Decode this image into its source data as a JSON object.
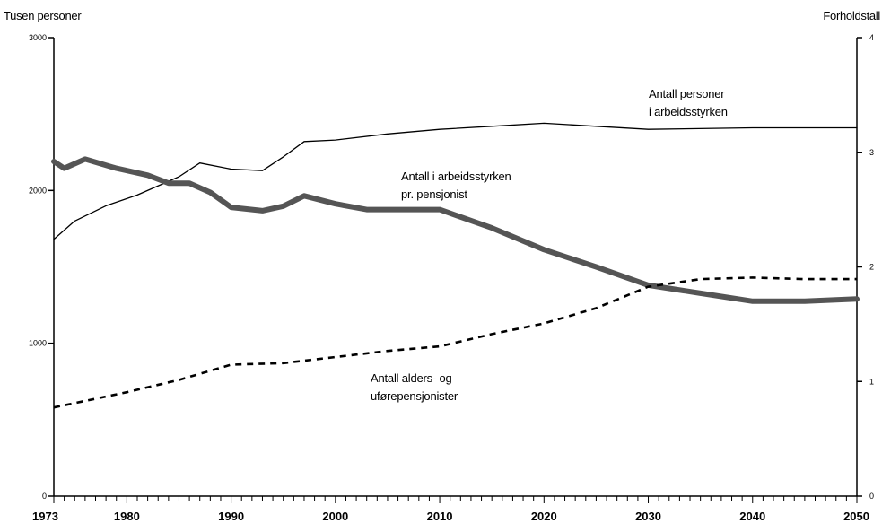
{
  "chart_data": {
    "type": "line",
    "ylabel": "Tusen personer",
    "y2label": "Forholdstall",
    "ylim": [
      0,
      3000
    ],
    "y2lim": [
      0,
      4
    ],
    "yticks": [
      "0",
      "1000",
      "2000",
      "3000"
    ],
    "y2ticks": [
      "0",
      "1",
      "2",
      "3",
      "4"
    ],
    "xlim": [
      1973,
      2050
    ],
    "xticks": [
      "1973",
      "1980",
      "1990",
      "2000",
      "2010",
      "2020",
      "2030",
      "2040",
      "2050"
    ],
    "grid": false,
    "series": [
      {
        "name": "Antall personer i arbeidsstyrken",
        "axis": "left",
        "style": "thin",
        "color": "#000000",
        "x": [
          1973,
          1975,
          1978,
          1981,
          1985,
          1987,
          1990,
          1993,
          1995,
          1997,
          2000,
          2005,
          2010,
          2015,
          2020,
          2025,
          2030,
          2040,
          2050
        ],
        "y": [
          1680,
          1800,
          1900,
          1970,
          2090,
          2180,
          2140,
          2130,
          2220,
          2320,
          2330,
          2370,
          2400,
          2420,
          2440,
          2420,
          2400,
          2410,
          2410
        ]
      },
      {
        "name": "Antall i arbeidsstyrken pr. pensjonist",
        "axis": "right",
        "style": "thick",
        "color": "#555555",
        "x": [
          1973,
          1974,
          1976,
          1979,
          1982,
          1984,
          1986,
          1988,
          1990,
          1993,
          1995,
          1997,
          2000,
          2003,
          2010,
          2015,
          2020,
          2025,
          2030,
          2035,
          2040,
          2045,
          2050
        ],
        "y": [
          2.92,
          2.86,
          2.94,
          2.86,
          2.8,
          2.73,
          2.73,
          2.65,
          2.52,
          2.49,
          2.53,
          2.62,
          2.55,
          2.5,
          2.5,
          2.34,
          2.15,
          2.0,
          1.84,
          1.77,
          1.7,
          1.7,
          1.72
        ]
      },
      {
        "name": "Antall alders- og uførepensjonister",
        "axis": "left",
        "style": "dashed",
        "color": "#000000",
        "x": [
          1973,
          1980,
          1985,
          1990,
          1995,
          2000,
          2005,
          2010,
          2015,
          2020,
          2025,
          2030,
          2035,
          2040,
          2045,
          2050
        ],
        "y": [
          580,
          680,
          760,
          860,
          870,
          910,
          950,
          980,
          1060,
          1130,
          1230,
          1370,
          1420,
          1430,
          1420,
          1420
        ]
      }
    ],
    "annotations": [
      {
        "lines": [
          "Antall personer",
          "i arbeidsstyrken"
        ]
      },
      {
        "lines": [
          "Antall i arbeidsstyrken",
          "pr. pensjonist"
        ]
      },
      {
        "lines": [
          "Antall alders- og",
          "uførepensjonister"
        ]
      }
    ]
  }
}
